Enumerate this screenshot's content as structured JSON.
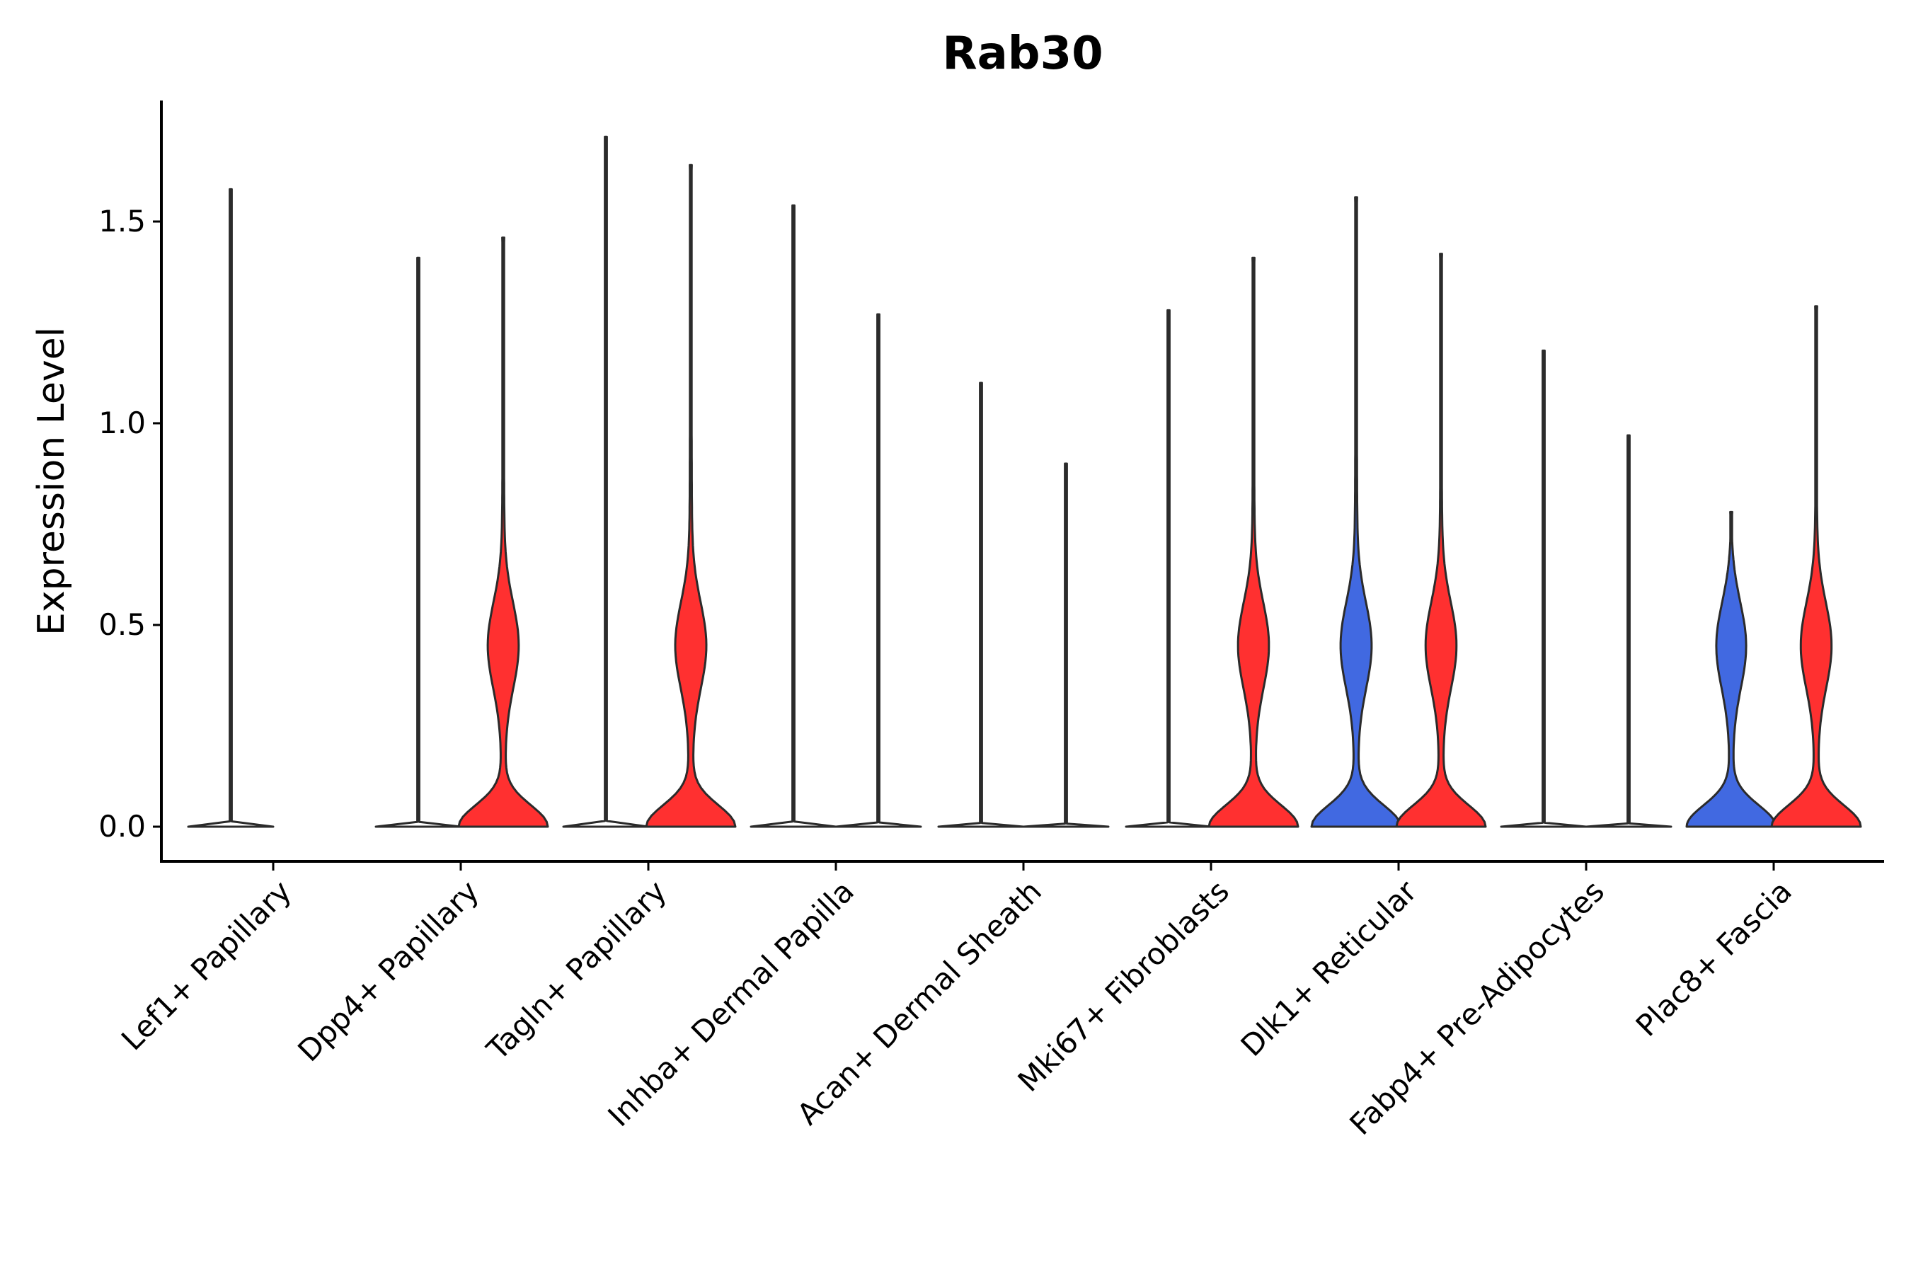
{
  "chart_data": {
    "type": "violin",
    "title": "Rab30",
    "xlabel": "",
    "ylabel": "Expression Level",
    "ylim": [
      -0.09,
      1.8
    ],
    "yticks": [
      0.0,
      0.5,
      1.0,
      1.5
    ],
    "ytick_labels": [
      "0.0",
      "0.5",
      "1.0",
      "1.5"
    ],
    "categories": [
      "Lef1+ Papillary",
      "Dpp4+ Papillary",
      "Tagln+ Papillary",
      "Inhba+ Dermal Papilla",
      "Acan+ Dermal Sheath",
      "Mki67+ Fibroblasts",
      "Dlk1+ Reticular",
      "Fabp4+ Pre-Adipocytes",
      "Plac8+ Fascia"
    ],
    "groups": [
      "left",
      "right"
    ],
    "group_colors": {
      "left": "#4169e1",
      "right": "#ff3030",
      "empty": "#ffffff"
    },
    "violins": [
      {
        "category": 0,
        "group": "left",
        "max": 1.58,
        "filled": false,
        "profile": "flat"
      },
      {
        "category": 1,
        "group": "left",
        "max": 1.41,
        "filled": false,
        "profile": "flat"
      },
      {
        "category": 1,
        "group": "right",
        "max": 1.46,
        "filled": true,
        "profile": "bimodal"
      },
      {
        "category": 2,
        "group": "left",
        "max": 1.71,
        "filled": false,
        "profile": "flat"
      },
      {
        "category": 2,
        "group": "right",
        "max": 1.64,
        "filled": true,
        "profile": "bimodal"
      },
      {
        "category": 3,
        "group": "left",
        "max": 1.54,
        "filled": false,
        "profile": "flat"
      },
      {
        "category": 3,
        "group": "right",
        "max": 1.27,
        "filled": false,
        "profile": "flat"
      },
      {
        "category": 4,
        "group": "left",
        "max": 1.1,
        "filled": false,
        "profile": "flat"
      },
      {
        "category": 4,
        "group": "right",
        "max": 0.9,
        "filled": false,
        "profile": "flat"
      },
      {
        "category": 5,
        "group": "left",
        "max": 1.28,
        "filled": false,
        "profile": "flat"
      },
      {
        "category": 5,
        "group": "right",
        "max": 1.41,
        "filled": true,
        "profile": "bimodal"
      },
      {
        "category": 6,
        "group": "left",
        "max": 1.56,
        "filled": true,
        "profile": "bimodal"
      },
      {
        "category": 6,
        "group": "right",
        "max": 1.42,
        "filled": true,
        "profile": "bimodal"
      },
      {
        "category": 7,
        "group": "left",
        "max": 1.18,
        "filled": false,
        "profile": "flat"
      },
      {
        "category": 7,
        "group": "right",
        "max": 0.97,
        "filled": false,
        "profile": "flat"
      },
      {
        "category": 8,
        "group": "left",
        "max": 0.78,
        "filled": true,
        "profile": "bimodal"
      },
      {
        "category": 8,
        "group": "right",
        "max": 1.29,
        "filled": true,
        "profile": "bimodal"
      }
    ]
  }
}
